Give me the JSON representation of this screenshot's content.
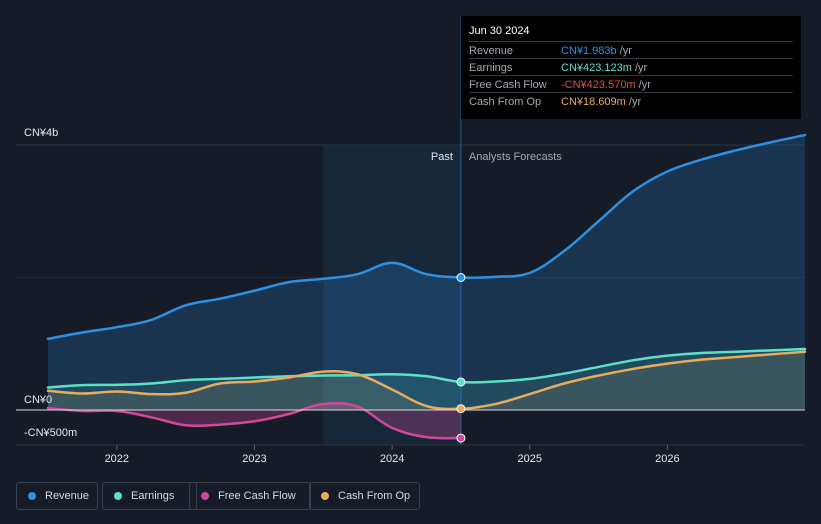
{
  "chart_data": {
    "type": "area",
    "currency": "CN¥",
    "y_axis_labels": [
      "CN¥4b",
      "CN¥0",
      "-CN¥500m"
    ],
    "x_tick_labels": [
      "2022",
      "2023",
      "2024",
      "2025",
      "2026"
    ],
    "x_ticks": [
      2022,
      2023,
      2024,
      2025,
      2026
    ],
    "xlim": [
      2021.5,
      2027.0
    ],
    "ylim": [
      -500,
      4000
    ],
    "y_gridlines": [
      4000,
      2000,
      0,
      -500
    ],
    "past_label": "Past",
    "forecast_label": "Analysts Forecasts",
    "past_end": 2024.5,
    "highlight_start": 2023.5,
    "series": [
      {
        "name": "Revenue",
        "unit": "CN¥m",
        "color": "#2f8fe0",
        "fill": true,
        "points": [
          [
            2021.5,
            1075
          ],
          [
            2021.75,
            1170
          ],
          [
            2022.0,
            1250
          ],
          [
            2022.25,
            1360
          ],
          [
            2022.5,
            1580
          ],
          [
            2022.75,
            1680
          ],
          [
            2023.0,
            1800
          ],
          [
            2023.25,
            1930
          ],
          [
            2023.5,
            1980
          ],
          [
            2023.75,
            2050
          ],
          [
            2024.0,
            2220
          ],
          [
            2024.25,
            2050
          ],
          [
            2024.5,
            2000
          ],
          [
            2024.75,
            2010
          ],
          [
            2025.0,
            2070
          ],
          [
            2025.25,
            2400
          ],
          [
            2025.5,
            2850
          ],
          [
            2025.75,
            3300
          ],
          [
            2026.0,
            3600
          ],
          [
            2026.25,
            3780
          ],
          [
            2026.5,
            3920
          ],
          [
            2026.75,
            4040
          ],
          [
            2027.0,
            4150
          ]
        ]
      },
      {
        "name": "Earnings",
        "unit": "CN¥m",
        "color": "#5ce1c8",
        "fill": true,
        "points": [
          [
            2021.5,
            340
          ],
          [
            2021.75,
            375
          ],
          [
            2022.0,
            380
          ],
          [
            2022.25,
            400
          ],
          [
            2022.5,
            450
          ],
          [
            2022.75,
            470
          ],
          [
            2023.0,
            490
          ],
          [
            2023.25,
            510
          ],
          [
            2023.5,
            520
          ],
          [
            2023.75,
            525
          ],
          [
            2024.0,
            540
          ],
          [
            2024.25,
            510
          ],
          [
            2024.5,
            423
          ],
          [
            2024.75,
            430
          ],
          [
            2025.0,
            470
          ],
          [
            2025.25,
            550
          ],
          [
            2025.5,
            650
          ],
          [
            2025.75,
            750
          ],
          [
            2026.0,
            820
          ],
          [
            2026.25,
            860
          ],
          [
            2026.5,
            880
          ],
          [
            2026.75,
            900
          ],
          [
            2027.0,
            920
          ]
        ]
      },
      {
        "name": "Free Cash Flow",
        "unit": "CN¥m",
        "color": "#d0489c",
        "fill": true,
        "points": [
          [
            2021.5,
            30
          ],
          [
            2021.75,
            -15
          ],
          [
            2022.0,
            -15
          ],
          [
            2022.25,
            -110
          ],
          [
            2022.5,
            -230
          ],
          [
            2022.75,
            -220
          ],
          [
            2023.0,
            -170
          ],
          [
            2023.25,
            -60
          ],
          [
            2023.5,
            90
          ],
          [
            2023.75,
            50
          ],
          [
            2024.0,
            -270
          ],
          [
            2024.25,
            -410
          ],
          [
            2024.5,
            -424
          ]
        ]
      },
      {
        "name": "Cash From Op",
        "unit": "CN¥m",
        "color": "#e9ab60",
        "fill": true,
        "points": [
          [
            2021.5,
            290
          ],
          [
            2021.75,
            250
          ],
          [
            2022.0,
            280
          ],
          [
            2022.25,
            240
          ],
          [
            2022.5,
            260
          ],
          [
            2022.75,
            400
          ],
          [
            2023.0,
            430
          ],
          [
            2023.25,
            490
          ],
          [
            2023.5,
            580
          ],
          [
            2023.75,
            540
          ],
          [
            2024.0,
            310
          ],
          [
            2024.25,
            60
          ],
          [
            2024.5,
            19
          ],
          [
            2024.75,
            90
          ],
          [
            2025.0,
            240
          ],
          [
            2025.25,
            400
          ],
          [
            2025.5,
            520
          ],
          [
            2025.75,
            620
          ],
          [
            2026.0,
            700
          ],
          [
            2026.25,
            760
          ],
          [
            2026.5,
            800
          ],
          [
            2026.75,
            840
          ],
          [
            2027.0,
            880
          ]
        ]
      }
    ]
  },
  "tooltip": {
    "date": "Jun 30 2024",
    "rows": [
      {
        "label": "Revenue",
        "value": "CN¥1.983b",
        "unit": "/yr",
        "color": "#2f8fe0"
      },
      {
        "label": "Earnings",
        "value": "CN¥423.123m",
        "unit": "/yr",
        "color": "#5ce1c8"
      },
      {
        "label": "Free Cash Flow",
        "value": "-CN¥423.570m",
        "unit": "/yr",
        "color": "#e84a4a"
      },
      {
        "label": "Cash From Op",
        "value": "CN¥18.609m",
        "unit": "/yr",
        "color": "#e9ab60"
      }
    ]
  },
  "legend": [
    {
      "label": "Revenue",
      "color": "#2f8fe0"
    },
    {
      "label": "Earnings",
      "color": "#5ce1c8"
    },
    {
      "label": "Free Cash Flow",
      "color": "#d0489c"
    },
    {
      "label": "Cash From Op",
      "color": "#e9ab60"
    }
  ]
}
